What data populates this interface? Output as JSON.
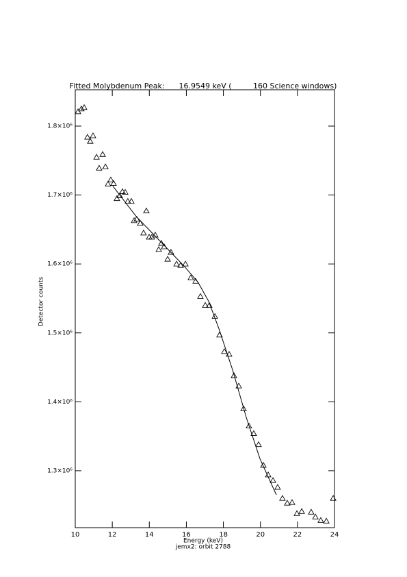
{
  "chart_data": {
    "type": "scatter",
    "title": "Fitted Molybdenum Peak:      16.9549 keV (         160 Science windows)",
    "x_label": "Energy (keV)",
    "y_label": "Detector counts",
    "caption": "jemx2: orbit 2788",
    "xlim": [
      10,
      24
    ],
    "ylim": [
      1217400,
      1852700
    ],
    "xticks": [
      10,
      12,
      14,
      16,
      18,
      20,
      22,
      24
    ],
    "yticks": [
      {
        "value": 1300000,
        "label": "1.3×10⁶"
      },
      {
        "value": 1400000,
        "label": "1.4×10⁶"
      },
      {
        "value": 1500000,
        "label": "1.5×10⁶"
      },
      {
        "value": 1600000,
        "label": "1.6×10⁶"
      },
      {
        "value": 1700000,
        "label": "1.7×10⁶"
      },
      {
        "value": 1800000,
        "label": "1.8×10⁶"
      }
    ],
    "series": [
      {
        "marker": "triangle",
        "color": "#000000",
        "x": [
          10.15,
          10.33,
          10.48,
          10.66,
          10.81,
          10.96,
          11.15,
          11.29,
          11.48,
          11.63,
          11.77,
          11.92,
          12.07,
          12.25,
          12.4,
          12.55,
          12.7,
          12.84,
          13.03,
          13.18,
          13.32,
          13.51,
          13.69,
          13.84,
          13.99,
          14.14,
          14.32,
          14.51,
          14.65,
          14.8,
          14.99,
          15.17,
          15.47,
          15.69,
          15.95,
          16.24,
          16.5,
          16.76,
          17.02,
          17.24,
          17.54,
          17.79,
          18.05,
          18.31,
          18.57,
          18.83,
          19.09,
          19.38,
          19.64,
          19.9,
          20.16,
          20.42,
          20.68,
          20.93,
          21.19,
          21.45,
          21.71,
          21.97,
          22.23,
          22.74,
          22.97,
          23.26,
          23.56,
          23.93
        ],
        "values": [
          1821000,
          1825000,
          1827000,
          1784000,
          1778000,
          1786000,
          1755000,
          1739000,
          1759000,
          1741000,
          1716000,
          1722000,
          1717000,
          1695000,
          1699000,
          1705000,
          1704000,
          1691000,
          1691000,
          1663000,
          1665000,
          1659000,
          1645000,
          1677000,
          1639000,
          1639000,
          1642000,
          1621000,
          1630000,
          1625000,
          1607000,
          1617000,
          1600000,
          1598000,
          1600000,
          1580000,
          1575000,
          1553000,
          1540000,
          1540000,
          1524000,
          1497000,
          1473000,
          1469000,
          1438000,
          1423000,
          1390000,
          1365000,
          1354000,
          1338000,
          1308000,
          1294000,
          1286000,
          1276000,
          1260000,
          1253000,
          1254000,
          1238000,
          1241000,
          1240000,
          1233000,
          1228000,
          1227000,
          1260000
        ]
      },
      {
        "marker": "line",
        "color": "#000000",
        "x": [
          12.03,
          13.32,
          14.8,
          15.91,
          16.64,
          17.2,
          17.76,
          18.5,
          19.24,
          19.98,
          20.86
        ],
        "values": [
          1713000,
          1668000,
          1627000,
          1596000,
          1573000,
          1546000,
          1506000,
          1446000,
          1377000,
          1317000,
          1265000
        ]
      }
    ]
  }
}
